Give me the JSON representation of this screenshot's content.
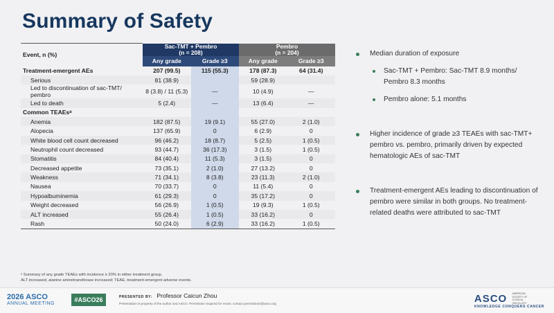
{
  "title": "Summary of Safety",
  "table": {
    "event_header": "Event, n (%)",
    "group_sac_line1": "Sac-TMT + Pembro",
    "group_sac_line2": "(n = 208)",
    "group_pem_line1": "Pembro",
    "group_pem_line2": "(n = 204)",
    "sub_any": "Any grade",
    "sub_g3": "Grade ≥3",
    "rows": [
      {
        "label": "Treatment-emergent AEs",
        "section": true,
        "v": [
          "207 (99.5)",
          "115 (55.3)",
          "178 (87.3)",
          "64 (31.4)"
        ]
      },
      {
        "label": "Serious",
        "v": [
          "81 (38.9)",
          "",
          "59 (28.9)",
          ""
        ]
      },
      {
        "label": "Led to discontinuation of sac-TMT/ pembro",
        "v": [
          "8 (3.8) / 11 (5.3)",
          "—",
          "10 (4.9)",
          "—"
        ]
      },
      {
        "label": "Led to death",
        "v": [
          "5 (2.4)",
          "—",
          "13 (6.4)",
          "—"
        ]
      },
      {
        "label": "Common TEAEsᵃ",
        "section": true,
        "v": [
          "",
          "",
          "",
          ""
        ]
      },
      {
        "label": "Anemia",
        "v": [
          "182 (87.5)",
          "19 (9.1)",
          "55 (27.0)",
          "2 (1.0)"
        ]
      },
      {
        "label": "Alopecia",
        "v": [
          "137 (65.9)",
          "0",
          "6 (2.9)",
          "0"
        ]
      },
      {
        "label": "White blood cell count decreased",
        "v": [
          "96 (46.2)",
          "18 (8.7)",
          "5 (2.5)",
          "1 (0.5)"
        ]
      },
      {
        "label": "Neutrophil count decreased",
        "v": [
          "93 (44.7)",
          "36 (17.3)",
          "3 (1.5)",
          "1 (0.5)"
        ]
      },
      {
        "label": "Stomatitis",
        "v": [
          "84 (40.4)",
          "11 (5.3)",
          "3 (1.5)",
          "0"
        ]
      },
      {
        "label": "Decreased appetite",
        "v": [
          "73 (35.1)",
          "2 (1.0)",
          "27 (13.2)",
          "0"
        ]
      },
      {
        "label": "Weakness",
        "v": [
          "71 (34.1)",
          "8 (3.8)",
          "23 (11.3)",
          "2 (1.0)"
        ]
      },
      {
        "label": "Nausea",
        "v": [
          "70 (33.7)",
          "0",
          "11 (5.4)",
          "0"
        ]
      },
      {
        "label": "Hypoalbuminemia",
        "v": [
          "61 (29.3)",
          "0",
          "35 (17.2)",
          "0"
        ]
      },
      {
        "label": "Weight decreased",
        "v": [
          "56 (26.9)",
          "1 (0.5)",
          "19 (9.3)",
          "1 (0.5)"
        ]
      },
      {
        "label": "ALT increased",
        "v": [
          "55 (26.4)",
          "1 (0.5)",
          "33 (16.2)",
          "0"
        ]
      },
      {
        "label": "Rash",
        "v": [
          "50 (24.0)",
          "6 (2.9)",
          "33 (16.2)",
          "1 (0.5)"
        ]
      }
    ]
  },
  "footnote1": "ᵃ Summary of any grade TEAEs with incidence ≥ 20% in either treatment group.",
  "footnote2": "ALT increased, alanine aminotransferase increased; TEAE, treatment-emergent adverse events.",
  "bullets": {
    "b1": "Median duration of exposure",
    "b1_sub1": "Sac-TMT + Pembro: Sac-TMT 8.9 months/ Pembro 8.3 months",
    "b1_sub2": "Pembro alone: 5.1 months",
    "b2": "Higher incidence of grade ≥3 TEAEs with sac-TMT+ pembro vs. pembro, primarily driven by expected hematologic AEs of sac-TMT",
    "b3": "Treatment-emergent AEs leading to discontinuation of pembro were similar in both groups. No treatment-related deaths were attributed to sac-TMT"
  },
  "footer": {
    "year_asco": "2026 ASCO",
    "meeting": "ANNUAL MEETING",
    "hashtag": "#ASCO26",
    "presented_label": "PRESENTED BY:",
    "presenter": "Professor Caicun Zhou",
    "property": "Presentation is property of the author and ASCO. Permission required for reuse; contact permissions@asco.org",
    "logo": "ASCO",
    "logo_small": "AMERICAN SOCIETY OF CLINICAL ONCOLOGY",
    "tagline": "KNOWLEDGE CONQUERS CANCER"
  },
  "colors": {
    "title": "#17375e",
    "sac_header": "#1f3864",
    "pembro_header": "#6b6b6b",
    "sac_grade3_shade": "#cfd9ea",
    "bullet_dot": "#3a7d5c"
  }
}
